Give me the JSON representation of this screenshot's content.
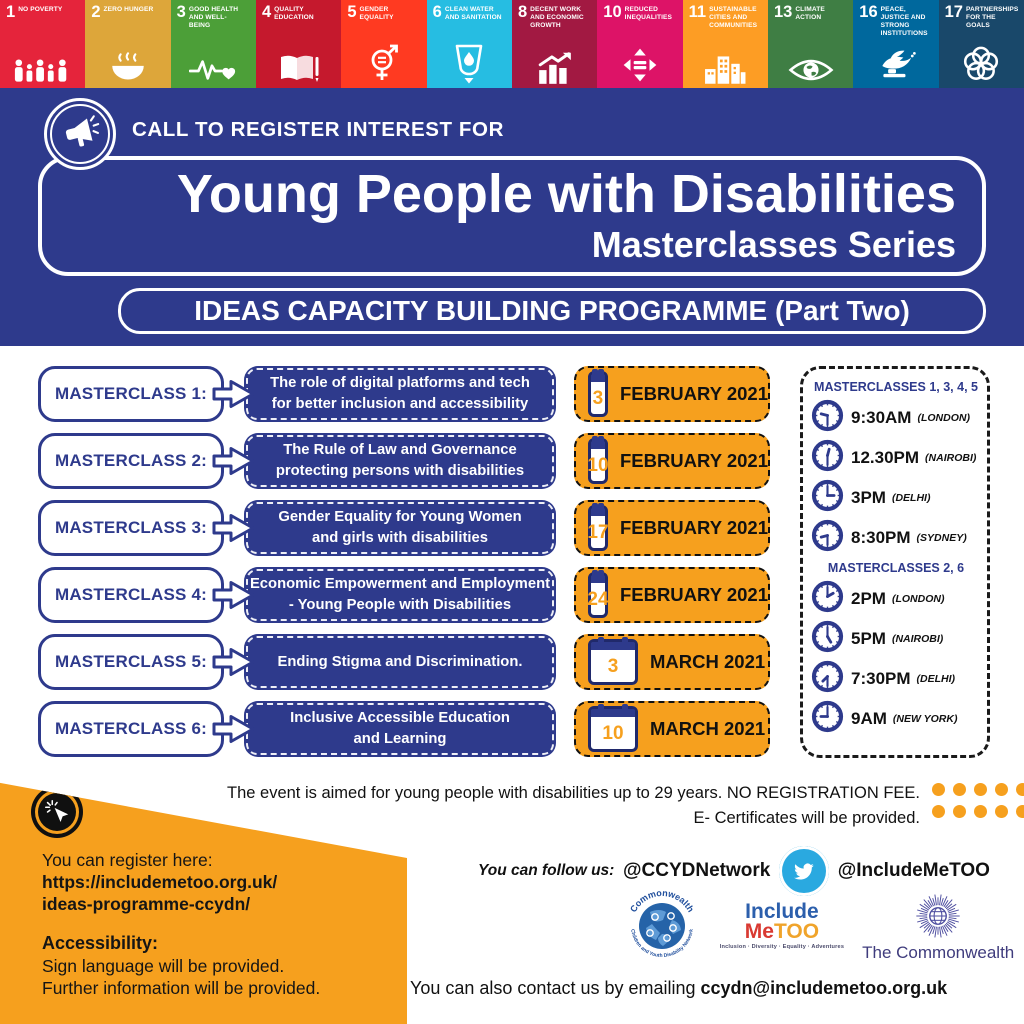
{
  "palette": {
    "navy": "#2E3A8C",
    "orange": "#F6A01E",
    "black": "#111111",
    "white": "#FFFFFF",
    "twitter_blue": "#2AA9E0",
    "commonwealth_purple": "#3F3C7D"
  },
  "sdg_strip": {
    "tiles": [
      {
        "num": "1",
        "name": "NO POVERTY",
        "color": "#E5243B",
        "icon": "people-icon"
      },
      {
        "num": "2",
        "name": "ZERO HUNGER",
        "color": "#DDA63A",
        "icon": "bowl-icon"
      },
      {
        "num": "3",
        "name": "GOOD HEALTH AND WELL-BEING",
        "color": "#4C9F38",
        "icon": "ekg-heart-icon"
      },
      {
        "num": "4",
        "name": "QUALITY EDUCATION",
        "color": "#C5192D",
        "icon": "book-icon"
      },
      {
        "num": "5",
        "name": "GENDER EQUALITY",
        "color": "#FF3A21",
        "icon": "gender-equality-icon"
      },
      {
        "num": "6",
        "name": "CLEAN WATER AND SANITATION",
        "color": "#26BDE2",
        "icon": "water-icon"
      },
      {
        "num": "8",
        "name": "DECENT WORK AND ECONOMIC GROWTH",
        "color": "#A21942",
        "icon": "growth-chart-icon"
      },
      {
        "num": "10",
        "name": "REDUCED INEQUALITIES",
        "color": "#DD1367",
        "icon": "equality-arrows-icon"
      },
      {
        "num": "11",
        "name": "SUSTAINABLE CITIES AND COMMUNITIES",
        "color": "#FD9D24",
        "icon": "city-icon"
      },
      {
        "num": "13",
        "name": "CLIMATE ACTION",
        "color": "#3F7E44",
        "icon": "climate-eye-icon"
      },
      {
        "num": "16",
        "name": "PEACE, JUSTICE AND STRONG INSTITUTIONS",
        "color": "#00689D",
        "icon": "dove-gavel-icon"
      },
      {
        "num": "17",
        "name": "PARTNERSHIPS FOR THE GOALS",
        "color": "#19486A",
        "icon": "rings-icon"
      }
    ]
  },
  "header": {
    "kicker": "CALL TO REGISTER INTEREST FOR",
    "title": "Young People with Disabilities",
    "subtitle": "Masterclasses Series",
    "banner": "IDEAS CAPACITY BUILDING PROGRAMME (Part Two)"
  },
  "masterclasses": [
    {
      "label": "MASTERCLASS 1:",
      "lines": [
        "The role of digital platforms and tech",
        "for better inclusion and accessibility"
      ],
      "day": "3",
      "month": "FEBRUARY 2021"
    },
    {
      "label": "MASTERCLASS 2:",
      "lines": [
        "The Rule of Law and Governance",
        "protecting persons with disabilities"
      ],
      "day": "10",
      "month": "FEBRUARY 2021"
    },
    {
      "label": "MASTERCLASS 3:",
      "lines": [
        "Gender Equality for Young Women",
        "and girls with disabilities"
      ],
      "day": "17",
      "month": "FEBRUARY 2021"
    },
    {
      "label": "MASTERCLASS 4:",
      "lines": [
        "Economic Empowerment and Employment",
        "- Young People with Disabilities"
      ],
      "day": "24",
      "month": "FEBRUARY 2021"
    },
    {
      "label": "MASTERCLASS 5:",
      "lines": [
        "Ending Stigma and Discrimination."
      ],
      "day": "3",
      "month": "MARCH 2021"
    },
    {
      "label": "MASTERCLASS 6:",
      "lines": [
        "Inclusive Accessible Education",
        "and Learning"
      ],
      "day": "10",
      "month": "MARCH 2021"
    }
  ],
  "schedule": {
    "groups": [
      {
        "heading": "MASTERCLASSES 1, 3, 4, 5",
        "times": [
          {
            "time": "9:30AM",
            "city": "(LONDON)"
          },
          {
            "time": "12.30PM",
            "city": "(NAIROBI)"
          },
          {
            "time": "3PM",
            "city": "(DELHI)"
          },
          {
            "time": "8:30PM",
            "city": "(SYDNEY)"
          }
        ]
      },
      {
        "heading": "MASTERCLASSES 2, 6",
        "times": [
          {
            "time": "2PM",
            "city": "(LONDON)"
          },
          {
            "time": "5PM",
            "city": "(NAIROBI)"
          },
          {
            "time": "7:30PM",
            "city": "(DELHI)"
          },
          {
            "time": "9AM",
            "city": "(NEW YORK)"
          }
        ]
      }
    ]
  },
  "footer": {
    "note_line1": "The event is aimed for young people with disabilities up to 29 years. NO REGISTRATION FEE.",
    "note_line2": "E- Certificates will be provided.",
    "register_intro": "You can register here:",
    "register_url_line1": "https://includemetoo.org.uk/",
    "register_url_line2": "ideas-programme-ccydn/",
    "accessibility_heading": "Accessibility:",
    "accessibility_line1": "Sign language will be provided.",
    "accessibility_line2": "Further information will be provided.",
    "follow_label": "You can follow us:",
    "handle1": "@CCYDNetwork",
    "handle2": "@IncludeMeTOO",
    "contact_prefix": "You can also contact us by emailing ",
    "contact_email": "ccydn@includemetoo.org.uk",
    "logos": {
      "ccydn_top": "Commonwealth",
      "ccydn_bottom": "Children and Youth Disability Network",
      "imt_line1": "Include",
      "imt_me": "Me",
      "imt_too": "TOO",
      "imt_tagline": "Inclusion · Diversity · Equality · Adventures",
      "commonwealth_text": "The Commonwealth"
    }
  }
}
